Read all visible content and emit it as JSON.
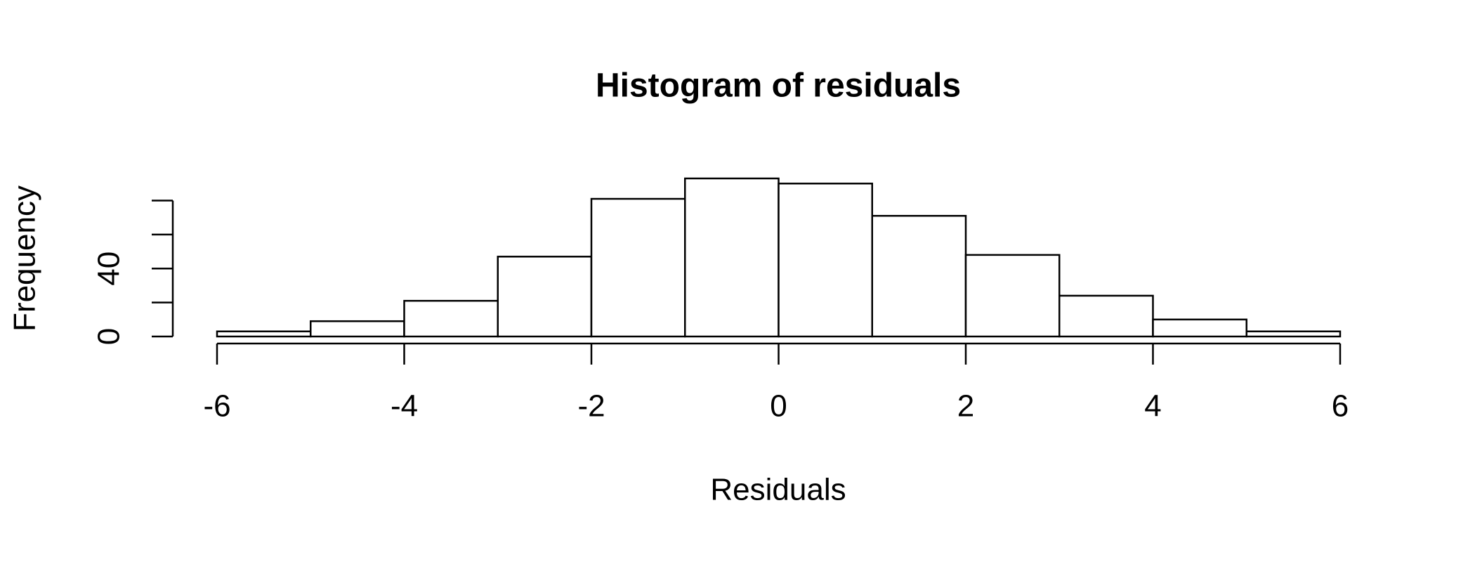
{
  "chart_data": {
    "type": "histogram",
    "title": "Histogram of residuals",
    "x_label": "Residuals",
    "y_label": "Frequency",
    "bins": [
      -6,
      -5,
      -4,
      -3,
      -2,
      -1,
      0,
      1,
      2,
      3,
      4,
      5,
      6
    ],
    "values": [
      3,
      9,
      21,
      47,
      81,
      93,
      90,
      71,
      48,
      24,
      10,
      3
    ],
    "color": "#ffffff",
    "edge_color": "#000000",
    "xlim": [
      -6,
      6
    ],
    "xticks": [
      -6,
      -4,
      -2,
      0,
      2,
      4,
      6
    ],
    "ylim": [
      0,
      93
    ],
    "yticks": [
      0,
      {
        "value": 20,
        "label": null
      },
      40,
      {
        "value": 60,
        "label": null
      },
      {
        "value": 80,
        "label": null
      }
    ],
    "grid": false
  }
}
